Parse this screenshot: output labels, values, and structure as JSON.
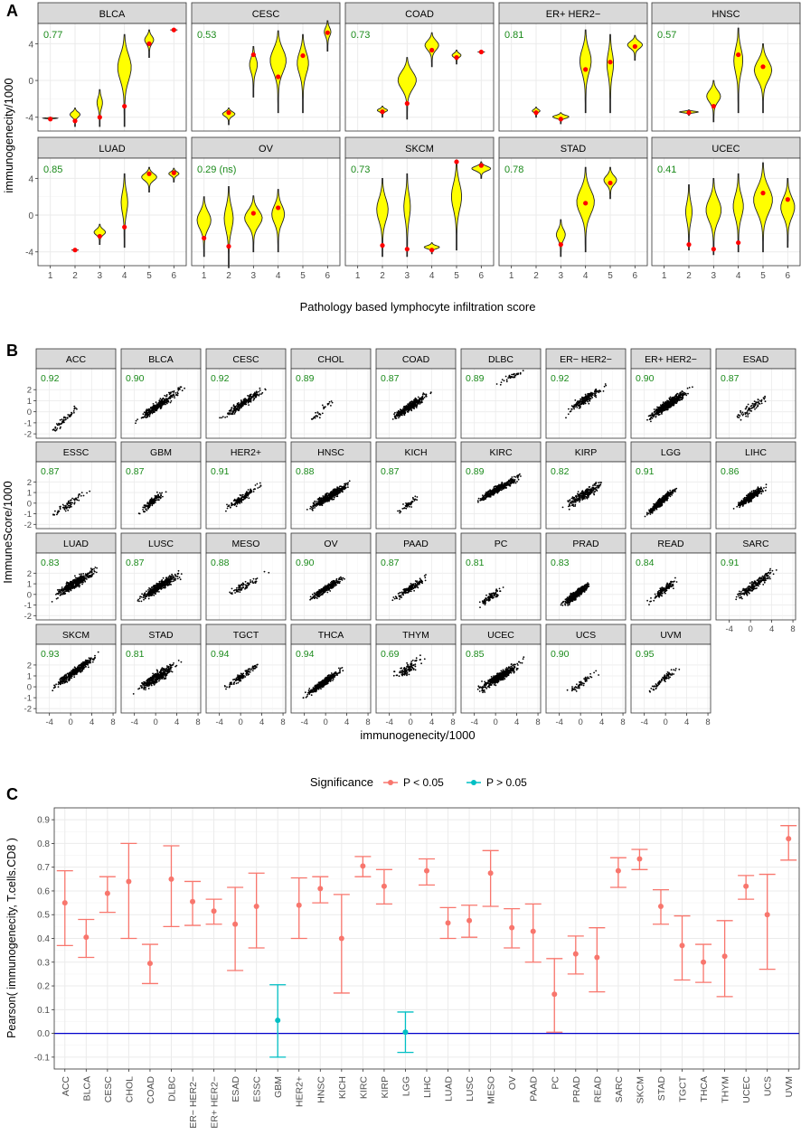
{
  "chart_data": [
    {
      "type": "violin",
      "panel_label": "A",
      "xlabel": "Pathology based lymphocyte infiltration score",
      "ylabel": "immunogenecity/1000",
      "x_ticks": [
        1,
        2,
        3,
        4,
        5,
        6
      ],
      "ylim": [
        -5.5,
        6.2
      ],
      "y_ticks": [
        -4,
        0,
        4
      ],
      "facets": [
        {
          "name": "BLCA",
          "corr": "0.77",
          "groups": [
            {
              "x": 1,
              "min": -4.3,
              "max": -4.0,
              "mean": -4.2
            },
            {
              "x": 2,
              "min": -5.0,
              "max": -3.0,
              "mean": -4.4
            },
            {
              "x": 3,
              "min": -5.0,
              "max": -1.0,
              "mean": -4.0
            },
            {
              "x": 4,
              "min": -5.0,
              "max": 5.0,
              "mean": -2.8
            },
            {
              "x": 5,
              "min": 2.5,
              "max": 5.5,
              "mean": 4.0
            },
            {
              "x": 6,
              "min": 5.5,
              "max": 5.5,
              "mean": 5.5
            }
          ]
        },
        {
          "name": "CESC",
          "corr": "0.53",
          "groups": [
            {
              "x": 2,
              "min": -4.8,
              "max": -3.0,
              "mean": -3.5
            },
            {
              "x": 3,
              "min": -1.8,
              "max": 3.7,
              "mean": 2.8
            },
            {
              "x": 4,
              "min": -3.5,
              "max": 5.4,
              "mean": 0.4
            },
            {
              "x": 5,
              "min": -3.5,
              "max": 5.0,
              "mean": 2.7
            },
            {
              "x": 6,
              "min": 3.2,
              "max": 6.5,
              "mean": 5.2
            }
          ]
        },
        {
          "name": "COAD",
          "corr": "0.73",
          "groups": [
            {
              "x": 2,
              "min": -4.0,
              "max": -2.8,
              "mean": -3.4
            },
            {
              "x": 3,
              "min": -4.2,
              "max": 2.5,
              "mean": -2.5
            },
            {
              "x": 4,
              "min": 1.5,
              "max": 5.2,
              "mean": 3.3
            },
            {
              "x": 5,
              "min": 1.8,
              "max": 3.3,
              "mean": 2.5
            },
            {
              "x": 6,
              "min": 3.1,
              "max": 3.1,
              "mean": 3.1
            }
          ]
        },
        {
          "name": "ER+ HER2−",
          "corr": "0.81",
          "groups": [
            {
              "x": 2,
              "min": -4.0,
              "max": -2.9,
              "mean": -3.5
            },
            {
              "x": 3,
              "min": -4.7,
              "max": -3.5,
              "mean": -4.2
            },
            {
              "x": 4,
              "min": -3.5,
              "max": 5.5,
              "mean": 1.2
            },
            {
              "x": 5,
              "min": -3.5,
              "max": 5.0,
              "mean": 2.0
            },
            {
              "x": 6,
              "min": 2.2,
              "max": 4.9,
              "mean": 3.7
            }
          ]
        },
        {
          "name": "HNSC",
          "corr": "0.57",
          "groups": [
            {
              "x": 2,
              "min": -3.8,
              "max": -3.2,
              "mean": -3.5
            },
            {
              "x": 3,
              "min": -4.5,
              "max": 0.0,
              "mean": -2.8
            },
            {
              "x": 4,
              "min": -3.5,
              "max": 5.7,
              "mean": 2.8
            },
            {
              "x": 5,
              "min": -3.5,
              "max": 4.0,
              "mean": 1.5
            }
          ]
        },
        {
          "name": "LUAD",
          "corr": "0.85",
          "groups": [
            {
              "x": 2,
              "min": -3.8,
              "max": -3.8,
              "mean": -3.8
            },
            {
              "x": 3,
              "min": -3.2,
              "max": -1.0,
              "mean": -2.3
            },
            {
              "x": 4,
              "min": -3.5,
              "max": 4.5,
              "mean": -1.3
            },
            {
              "x": 5,
              "min": 2.5,
              "max": 5.2,
              "mean": 4.5
            },
            {
              "x": 6,
              "min": 3.6,
              "max": 5.1,
              "mean": 4.6
            }
          ]
        },
        {
          "name": "OV",
          "corr": "0.29 (ns)",
          "groups": [
            {
              "x": 1,
              "min": -4.5,
              "max": 2.0,
              "mean": -2.5
            },
            {
              "x": 2,
              "min": -5.7,
              "max": 3.1,
              "mean": -3.4
            },
            {
              "x": 3,
              "min": -4.0,
              "max": 2.1,
              "mean": 0.2
            },
            {
              "x": 4,
              "min": -4.0,
              "max": 2.8,
              "mean": 0.8
            }
          ]
        },
        {
          "name": "SKCM",
          "corr": "0.73",
          "groups": [
            {
              "x": 2,
              "min": -4.5,
              "max": 4.0,
              "mean": -3.3
            },
            {
              "x": 3,
              "min": -4.5,
              "max": 4.5,
              "mean": -3.7
            },
            {
              "x": 4,
              "min": -4.2,
              "max": -3.0,
              "mean": -3.8
            },
            {
              "x": 5,
              "min": -3.8,
              "max": 6.0,
              "mean": 5.8
            },
            {
              "x": 6,
              "min": 4.0,
              "max": 5.8,
              "mean": 5.4
            }
          ]
        },
        {
          "name": "STAD",
          "corr": "0.78",
          "groups": [
            {
              "x": 3,
              "min": -4.5,
              "max": -0.5,
              "mean": -3.2
            },
            {
              "x": 4,
              "min": -4.0,
              "max": 5.2,
              "mean": 1.3
            },
            {
              "x": 5,
              "min": 1.8,
              "max": 5.2,
              "mean": 3.5
            }
          ]
        },
        {
          "name": "UCEC",
          "corr": "0.41",
          "groups": [
            {
              "x": 2,
              "min": -3.8,
              "max": 3.3,
              "mean": -3.2
            },
            {
              "x": 3,
              "min": -4.3,
              "max": 4.0,
              "mean": -3.7
            },
            {
              "x": 4,
              "min": -4.0,
              "max": 4.5,
              "mean": -3.0
            },
            {
              "x": 5,
              "min": -4.0,
              "max": 5.7,
              "mean": 2.4
            },
            {
              "x": 6,
              "min": -3.5,
              "max": 4.0,
              "mean": 1.7
            }
          ]
        }
      ]
    },
    {
      "type": "scatter",
      "panel_label": "B",
      "xlabel": "immunogenecity/1000",
      "ylabel": "ImmuneScore/1000",
      "xlim": [
        -6.5,
        8.5
      ],
      "ylim": [
        -2.4,
        3.9
      ],
      "x_ticks": [
        -4,
        0,
        4,
        8
      ],
      "y_ticks": [
        -2,
        -1,
        0,
        1,
        2
      ],
      "facets": [
        {
          "name": "ACC",
          "corr": "0.92",
          "n": 60,
          "xmin": -4.8,
          "xmax": 2.5,
          "slope": 0.48,
          "intercept": -0.15,
          "sd": 0.32
        },
        {
          "name": "BLCA",
          "corr": "0.90",
          "n": 320,
          "xmin": -5.5,
          "xmax": 6.5,
          "slope": 0.34,
          "intercept": 0.4,
          "sd": 0.4
        },
        {
          "name": "CESC",
          "corr": "0.92",
          "n": 230,
          "xmin": -5.0,
          "xmax": 6.0,
          "slope": 0.32,
          "intercept": 0.6,
          "sd": 0.35
        },
        {
          "name": "CHOL",
          "corr": "0.89",
          "n": 30,
          "xmin": -4.5,
          "xmax": 2.8,
          "slope": 0.38,
          "intercept": 0.4,
          "sd": 0.35
        },
        {
          "name": "COAD",
          "corr": "0.87",
          "n": 380,
          "xmin": -4.8,
          "xmax": 4.5,
          "slope": 0.3,
          "intercept": 0.5,
          "sd": 0.35
        },
        {
          "name": "DLBC",
          "corr": "0.89",
          "n": 40,
          "xmin": -0.5,
          "xmax": 6.5,
          "slope": 0.22,
          "intercept": 2.5,
          "sd": 0.25
        },
        {
          "name": "ER− HER2−",
          "corr": "0.92",
          "n": 200,
          "xmin": -4.5,
          "xmax": 6.5,
          "slope": 0.33,
          "intercept": 0.8,
          "sd": 0.4
        },
        {
          "name": "ER+ HER2−",
          "corr": "0.90",
          "n": 550,
          "xmin": -5.0,
          "xmax": 6.0,
          "slope": 0.32,
          "intercept": 0.5,
          "sd": 0.38
        },
        {
          "name": "ESAD",
          "corr": "0.87",
          "n": 80,
          "xmin": -4.5,
          "xmax": 4.5,
          "slope": 0.33,
          "intercept": 0.3,
          "sd": 0.42
        },
        {
          "name": "ESSC",
          "corr": "0.87",
          "n": 75,
          "xmin": -5.0,
          "xmax": 4.5,
          "slope": 0.32,
          "intercept": 0.0,
          "sd": 0.42
        },
        {
          "name": "GBM",
          "corr": "0.87",
          "n": 140,
          "xmin": -4.0,
          "xmax": 2.8,
          "slope": 0.4,
          "intercept": 0.4,
          "sd": 0.38
        },
        {
          "name": "HER2+",
          "corr": "0.91",
          "n": 150,
          "xmin": -4.5,
          "xmax": 5.0,
          "slope": 0.33,
          "intercept": 0.4,
          "sd": 0.35
        },
        {
          "name": "HNSC",
          "corr": "0.88",
          "n": 450,
          "xmin": -5.0,
          "xmax": 6.5,
          "slope": 0.3,
          "intercept": 0.4,
          "sd": 0.36
        },
        {
          "name": "KICH",
          "corr": "0.87",
          "n": 50,
          "xmin": -4.0,
          "xmax": 3.0,
          "slope": 0.35,
          "intercept": 0.0,
          "sd": 0.35
        },
        {
          "name": "KIRC",
          "corr": "0.89",
          "n": 420,
          "xmin": -5.0,
          "xmax": 6.0,
          "slope": 0.28,
          "intercept": 1.2,
          "sd": 0.32
        },
        {
          "name": "KIRP",
          "corr": "0.82",
          "n": 250,
          "xmin": -4.5,
          "xmax": 6.0,
          "slope": 0.3,
          "intercept": 0.6,
          "sd": 0.45
        },
        {
          "name": "LGG",
          "corr": "0.91",
          "n": 450,
          "xmin": -4.5,
          "xmax": 3.0,
          "slope": 0.45,
          "intercept": 0.5,
          "sd": 0.32
        },
        {
          "name": "LIHC",
          "corr": "0.86",
          "n": 330,
          "xmin": -4.0,
          "xmax": 4.0,
          "slope": 0.34,
          "intercept": 0.6,
          "sd": 0.38
        },
        {
          "name": "LUAD",
          "corr": "0.83",
          "n": 450,
          "xmin": -5.0,
          "xmax": 6.5,
          "slope": 0.3,
          "intercept": 0.8,
          "sd": 0.45
        },
        {
          "name": "LUSC",
          "corr": "0.87",
          "n": 450,
          "xmin": -5.0,
          "xmax": 6.5,
          "slope": 0.3,
          "intercept": 0.5,
          "sd": 0.42
        },
        {
          "name": "MESO",
          "corr": "0.88",
          "n": 80,
          "xmin": -4.5,
          "xmax": 6.0,
          "slope": 0.25,
          "intercept": 0.6,
          "sd": 0.35
        },
        {
          "name": "OV",
          "corr": "0.90",
          "n": 280,
          "xmin": -4.5,
          "xmax": 5.0,
          "slope": 0.32,
          "intercept": 0.5,
          "sd": 0.32
        },
        {
          "name": "PAAD",
          "corr": "0.87",
          "n": 160,
          "xmin": -4.5,
          "xmax": 4.5,
          "slope": 0.33,
          "intercept": 0.6,
          "sd": 0.38
        },
        {
          "name": "PC",
          "corr": "0.81",
          "n": 90,
          "xmin": -4.5,
          "xmax": 2.8,
          "slope": 0.3,
          "intercept": 0.0,
          "sd": 0.35
        },
        {
          "name": "PRAD",
          "corr": "0.83",
          "n": 450,
          "xmin": -4.5,
          "xmax": 2.8,
          "slope": 0.36,
          "intercept": 0.3,
          "sd": 0.35
        },
        {
          "name": "READ",
          "corr": "0.84",
          "n": 150,
          "xmin": -4.0,
          "xmax": 3.2,
          "slope": 0.33,
          "intercept": 0.5,
          "sd": 0.35
        },
        {
          "name": "SARC",
          "corr": "0.91",
          "n": 230,
          "xmin": -5.0,
          "xmax": 6.5,
          "slope": 0.35,
          "intercept": 0.6,
          "sd": 0.38
        },
        {
          "name": "SKCM",
          "corr": "0.93",
          "n": 420,
          "xmin": -5.0,
          "xmax": 6.5,
          "slope": 0.35,
          "intercept": 1.1,
          "sd": 0.35
        },
        {
          "name": "STAD",
          "corr": "0.81",
          "n": 380,
          "xmin": -5.0,
          "xmax": 5.5,
          "slope": 0.3,
          "intercept": 0.8,
          "sd": 0.45
        },
        {
          "name": "TGCT",
          "corr": "0.94",
          "n": 130,
          "xmin": -5.0,
          "xmax": 5.5,
          "slope": 0.32,
          "intercept": 0.9,
          "sd": 0.3
        },
        {
          "name": "THCA",
          "corr": "0.94",
          "n": 480,
          "xmin": -5.0,
          "xmax": 4.5,
          "slope": 0.34,
          "intercept": 0.5,
          "sd": 0.3
        },
        {
          "name": "THYM",
          "corr": "0.69",
          "n": 110,
          "xmin": -4.0,
          "xmax": 3.0,
          "slope": 0.25,
          "intercept": 1.8,
          "sd": 0.5
        },
        {
          "name": "UCEC",
          "corr": "0.85",
          "n": 500,
          "xmin": -5.0,
          "xmax": 6.5,
          "slope": 0.3,
          "intercept": 0.7,
          "sd": 0.42
        },
        {
          "name": "UCS",
          "corr": "0.90",
          "n": 55,
          "xmin": -4.5,
          "xmax": 5.0,
          "slope": 0.33,
          "intercept": 0.3,
          "sd": 0.35
        },
        {
          "name": "UVM",
          "corr": "0.95",
          "n": 80,
          "xmin": -4.5,
          "xmax": 3.5,
          "slope": 0.38,
          "intercept": 0.8,
          "sd": 0.3
        }
      ]
    },
    {
      "type": "errorbar",
      "panel_label": "C",
      "title": "",
      "legend_title": "Significance",
      "legend": [
        {
          "label": "P < 0.05",
          "color": "#F8766D"
        },
        {
          "label": "P > 0.05",
          "color": "#00BFC4"
        }
      ],
      "ylabel": "Pearson( immunogenecity, T.cells.CD8 )",
      "ylim": [
        -0.15,
        0.95
      ],
      "y_ticks": [
        "-0.1",
        "0.0",
        "0.1",
        "0.2",
        "0.3",
        "0.4",
        "0.5",
        "0.6",
        "0.7",
        "0.8",
        "0.9"
      ],
      "reference_line": 0.0,
      "categories": [
        "ACC",
        "BLCA",
        "CESC",
        "CHOL",
        "COAD",
        "DLBC",
        "ER− HER2−",
        "ER+ HER2−",
        "ESAD",
        "ESSC",
        "GBM",
        "HER2+",
        "HNSC",
        "KICH",
        "KIRC",
        "KIRP",
        "LGG",
        "LIHC",
        "LUAD",
        "LUSC",
        "MESO",
        "OV",
        "PAAD",
        "PC",
        "PRAD",
        "READ",
        "SARC",
        "SKCM",
        "STAD",
        "TGCT",
        "THCA",
        "THYM",
        "UCEC",
        "UCS",
        "UVM"
      ],
      "values": [
        0.55,
        0.405,
        0.59,
        0.64,
        0.295,
        0.65,
        0.555,
        0.515,
        0.46,
        0.535,
        0.055,
        0.54,
        0.61,
        0.4,
        0.705,
        0.62,
        0.005,
        0.685,
        0.465,
        0.475,
        0.675,
        0.445,
        0.43,
        0.165,
        0.335,
        0.32,
        0.685,
        0.735,
        0.535,
        0.37,
        0.3,
        0.325,
        0.62,
        0.5,
        0.82
      ],
      "lower": [
        0.37,
        0.32,
        0.51,
        0.4,
        0.21,
        0.45,
        0.455,
        0.46,
        0.265,
        0.36,
        -0.1,
        0.4,
        0.55,
        0.17,
        0.66,
        0.545,
        -0.08,
        0.625,
        0.4,
        0.405,
        0.535,
        0.36,
        0.3,
        0.005,
        0.25,
        0.175,
        0.615,
        0.69,
        0.46,
        0.225,
        0.215,
        0.155,
        0.565,
        0.27,
        0.73
      ],
      "upper": [
        0.685,
        0.48,
        0.66,
        0.8,
        0.375,
        0.79,
        0.64,
        0.565,
        0.615,
        0.675,
        0.205,
        0.655,
        0.66,
        0.585,
        0.745,
        0.69,
        0.09,
        0.735,
        0.53,
        0.54,
        0.77,
        0.525,
        0.545,
        0.315,
        0.41,
        0.445,
        0.74,
        0.775,
        0.605,
        0.495,
        0.375,
        0.475,
        0.665,
        0.67,
        0.875
      ],
      "significant": [
        true,
        true,
        true,
        true,
        true,
        true,
        true,
        true,
        true,
        true,
        false,
        true,
        true,
        true,
        true,
        true,
        false,
        true,
        true,
        true,
        true,
        true,
        true,
        true,
        true,
        true,
        true,
        true,
        true,
        true,
        true,
        true,
        true,
        true,
        true
      ]
    }
  ]
}
